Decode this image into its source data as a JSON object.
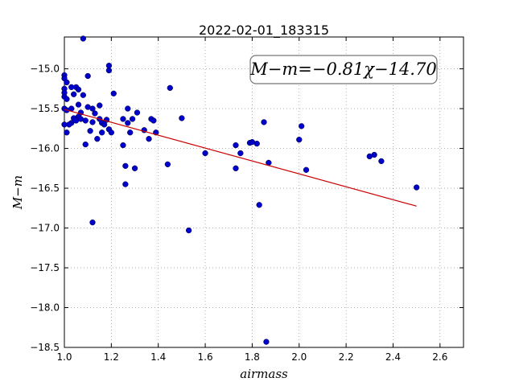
{
  "chart_data": {
    "type": "scatter",
    "title": "2022-02-01_183315",
    "xlabel": "airmass",
    "ylabel": "M−m",
    "annotation": "M−m=−0.81χ−14.70",
    "xlim": [
      1.0,
      2.7
    ],
    "ylim": [
      -18.5,
      -14.6
    ],
    "xticks": [
      1.0,
      1.2,
      1.4,
      1.6,
      1.8,
      2.0,
      2.2,
      2.4,
      2.6
    ],
    "xtick_labels": [
      "1.0",
      "1.2",
      "1.4",
      "1.6",
      "1.8",
      "2.0",
      "2.2",
      "2.4",
      "2.6"
    ],
    "yticks": [
      -15.0,
      -15.5,
      -16.0,
      -16.5,
      -17.0,
      -17.5,
      -18.0,
      -18.5
    ],
    "ytick_labels": [
      "−15.0",
      "−15.5",
      "−16.0",
      "−16.5",
      "−17.0",
      "−17.5",
      "−18.0",
      "−18.5"
    ],
    "grid": true,
    "point_color": "#0000cc",
    "fit_color": "#cc0000",
    "fit": {
      "slope": -0.81,
      "intercept": -14.7,
      "x_range": [
        1.0,
        2.5
      ]
    },
    "points": [
      [
        1.08,
        -14.62
      ],
      [
        1.0,
        -15.08
      ],
      [
        1.0,
        -15.12
      ],
      [
        1.01,
        -15.17
      ],
      [
        1.0,
        -15.25
      ],
      [
        1.0,
        -15.3
      ],
      [
        1.0,
        -15.35
      ],
      [
        1.01,
        -15.38
      ],
      [
        1.03,
        -15.23
      ],
      [
        1.05,
        -15.23
      ],
      [
        1.06,
        -15.26
      ],
      [
        1.04,
        -15.32
      ],
      [
        1.08,
        -15.33
      ],
      [
        1.1,
        -15.09
      ],
      [
        1.19,
        -14.96
      ],
      [
        1.19,
        -15.02
      ],
      [
        1.21,
        -15.31
      ],
      [
        1.0,
        -15.5
      ],
      [
        1.01,
        -15.52
      ],
      [
        1.03,
        -15.5
      ],
      [
        1.06,
        -15.45
      ],
      [
        1.07,
        -15.55
      ],
      [
        1.06,
        -15.6
      ],
      [
        1.04,
        -15.62
      ],
      [
        1.05,
        -15.65
      ],
      [
        1.07,
        -15.63
      ],
      [
        1.03,
        -15.68
      ],
      [
        1.02,
        -15.7
      ],
      [
        1.0,
        -15.7
      ],
      [
        1.09,
        -15.65
      ],
      [
        1.1,
        -15.48
      ],
      [
        1.12,
        -15.5
      ],
      [
        1.13,
        -15.56
      ],
      [
        1.15,
        -15.46
      ],
      [
        1.12,
        -15.67
      ],
      [
        1.11,
        -15.78
      ],
      [
        1.15,
        -15.63
      ],
      [
        1.16,
        -15.68
      ],
      [
        1.17,
        -15.7
      ],
      [
        1.18,
        -15.64
      ],
      [
        1.19,
        -15.76
      ],
      [
        1.2,
        -15.8
      ],
      [
        1.16,
        -15.8
      ],
      [
        1.14,
        -15.88
      ],
      [
        1.09,
        -15.95
      ],
      [
        1.01,
        -15.8
      ],
      [
        1.12,
        -16.93
      ],
      [
        1.25,
        -15.63
      ],
      [
        1.27,
        -15.5
      ],
      [
        1.27,
        -15.68
      ],
      [
        1.29,
        -15.63
      ],
      [
        1.31,
        -15.55
      ],
      [
        1.34,
        -15.77
      ],
      [
        1.28,
        -15.8
      ],
      [
        1.25,
        -15.96
      ],
      [
        1.36,
        -15.88
      ],
      [
        1.37,
        -15.63
      ],
      [
        1.38,
        -15.65
      ],
      [
        1.39,
        -15.8
      ],
      [
        1.26,
        -16.22
      ],
      [
        1.3,
        -16.25
      ],
      [
        1.26,
        -16.45
      ],
      [
        1.44,
        -16.2
      ],
      [
        1.45,
        -15.24
      ],
      [
        1.5,
        -15.62
      ],
      [
        1.53,
        -17.03
      ],
      [
        1.6,
        -16.06
      ],
      [
        1.73,
        -15.96
      ],
      [
        1.73,
        -16.25
      ],
      [
        1.75,
        -16.06
      ],
      [
        1.79,
        -15.93
      ],
      [
        1.8,
        -15.92
      ],
      [
        1.82,
        -15.94
      ],
      [
        1.83,
        -16.71
      ],
      [
        1.85,
        -15.67
      ],
      [
        1.87,
        -16.18
      ],
      [
        1.86,
        -18.43
      ],
      [
        2.0,
        -15.89
      ],
      [
        2.01,
        -15.72
      ],
      [
        2.03,
        -16.27
      ],
      [
        2.3,
        -16.1
      ],
      [
        2.32,
        -16.08
      ],
      [
        2.35,
        -16.16
      ],
      [
        2.5,
        -16.49
      ]
    ]
  }
}
